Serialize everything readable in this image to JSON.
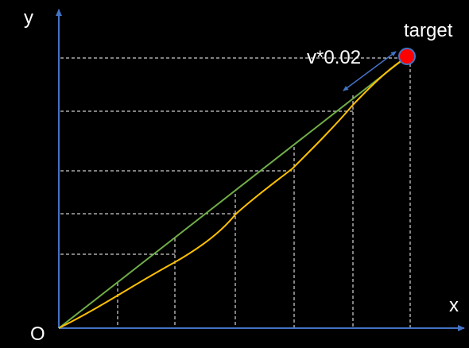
{
  "labels": {
    "y_axis": "y",
    "x_axis": "x",
    "origin": "O",
    "target": "target",
    "step": "v*0.02"
  },
  "colors": {
    "background": "#000000",
    "axis": "#4472c4",
    "straight_path": "#70ad47",
    "curved_path": "#ffc000",
    "target_fill": "#ff0000",
    "target_stroke": "#4472c4",
    "guide": "#ffffff",
    "text": "#ffffff"
  }
}
